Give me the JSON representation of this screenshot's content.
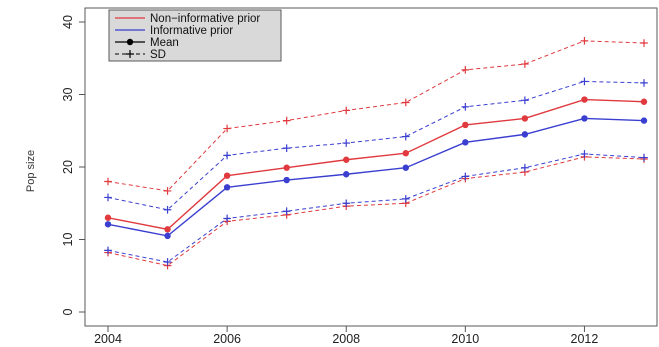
{
  "chart_data": {
    "type": "line",
    "title": "",
    "xlabel": "",
    "ylabel": "Pop size",
    "xlim": [
      2004,
      2013
    ],
    "ylim": [
      0,
      40
    ],
    "x": [
      2004,
      2005,
      2006,
      2007,
      2008,
      2009,
      2010,
      2011,
      2012,
      2013
    ],
    "x_ticks": [
      2004,
      2006,
      2008,
      2010,
      2012
    ],
    "y_ticks": [
      0,
      10,
      20,
      30,
      40
    ],
    "grid": false,
    "legend_position": "top-left",
    "legend": [
      {
        "label": "Non−informative prior",
        "kind": "line",
        "color": "#e0393e"
      },
      {
        "label": "Informative prior",
        "kind": "line",
        "color": "#3a3fd0"
      },
      {
        "label": "Mean",
        "kind": "solid-dot",
        "color": "#000000"
      },
      {
        "label": "SD",
        "kind": "dashed-plus",
        "color": "#000000"
      }
    ],
    "series": [
      {
        "group": "Non−informative prior",
        "stat": "Mean",
        "color": "#e0393e",
        "dashed": false,
        "marker": "dot",
        "values": [
          13.0,
          11.4,
          18.8,
          19.9,
          21.0,
          21.9,
          25.8,
          26.7,
          29.3,
          29.0
        ]
      },
      {
        "group": "Non−informative prior",
        "stat": "Mean + SD",
        "color": "#e0393e",
        "dashed": true,
        "marker": "plus",
        "values": [
          18.0,
          16.7,
          25.3,
          26.4,
          27.8,
          28.9,
          33.4,
          34.2,
          37.4,
          37.1
        ]
      },
      {
        "group": "Non−informative prior",
        "stat": "Mean − SD",
        "color": "#e0393e",
        "dashed": true,
        "marker": "plus",
        "values": [
          8.2,
          6.4,
          12.5,
          13.4,
          14.6,
          15.0,
          18.4,
          19.3,
          21.4,
          21.1
        ]
      },
      {
        "group": "Informative prior",
        "stat": "Mean",
        "color": "#3a3fd0",
        "dashed": false,
        "marker": "dot",
        "values": [
          12.1,
          10.5,
          17.2,
          18.2,
          19.0,
          19.9,
          23.4,
          24.5,
          26.7,
          26.4
        ]
      },
      {
        "group": "Informative prior",
        "stat": "Mean + SD",
        "color": "#3a3fd0",
        "dashed": true,
        "marker": "plus",
        "values": [
          15.8,
          14.1,
          21.6,
          22.6,
          23.3,
          24.2,
          28.3,
          29.2,
          31.8,
          31.6
        ]
      },
      {
        "group": "Informative prior",
        "stat": "Mean − SD",
        "color": "#3a3fd0",
        "dashed": true,
        "marker": "plus",
        "values": [
          8.5,
          6.9,
          12.9,
          13.9,
          15.0,
          15.6,
          18.7,
          19.9,
          21.8,
          21.3
        ]
      }
    ]
  }
}
